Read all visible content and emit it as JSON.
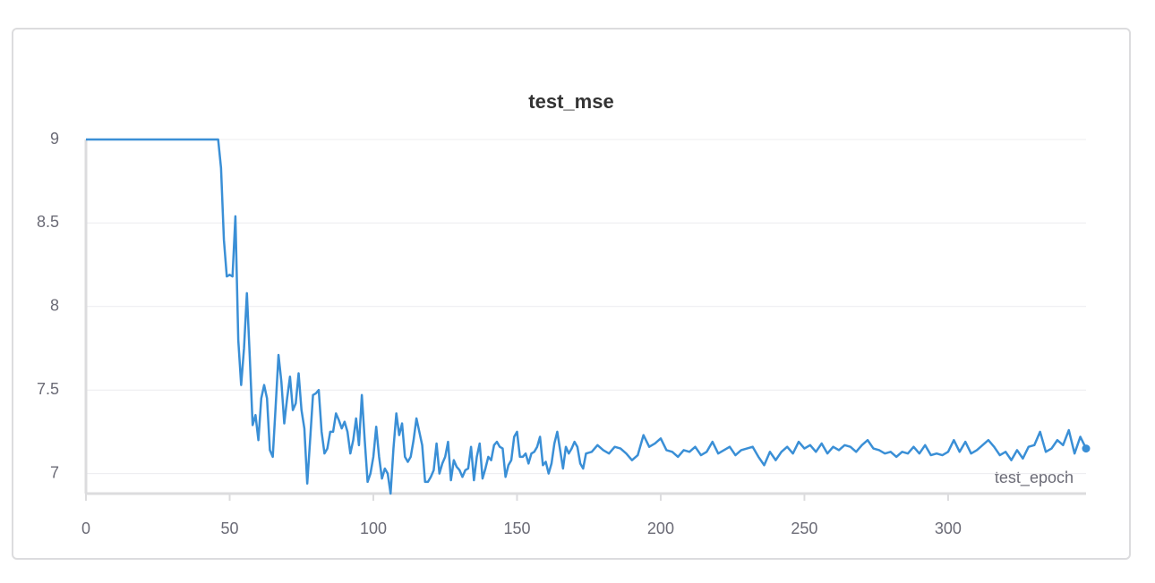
{
  "chart_data": {
    "type": "line",
    "title": "test_mse",
    "x_label": "test_epoch",
    "xlim": [
      0,
      348
    ],
    "ylim": [
      6.88,
      9
    ],
    "xticks": [
      0,
      50,
      100,
      150,
      200,
      250,
      300
    ],
    "yticks": [
      7,
      7.5,
      8,
      8.5,
      9
    ],
    "grid": true,
    "series": [
      {
        "name": "test_mse",
        "color": "#3a8fd6",
        "x": [
          0,
          46,
          47,
          48,
          49,
          50,
          51,
          52,
          53,
          54,
          55,
          56,
          57,
          58,
          59,
          60,
          61,
          62,
          63,
          64,
          65,
          66,
          67,
          68,
          69,
          70,
          71,
          72,
          73,
          74,
          75,
          76,
          77,
          78,
          79,
          80,
          81,
          82,
          83,
          84,
          85,
          86,
          87,
          88,
          89,
          90,
          91,
          92,
          93,
          94,
          95,
          96,
          97,
          98,
          99,
          100,
          101,
          102,
          103,
          104,
          105,
          106,
          107,
          108,
          109,
          110,
          111,
          112,
          113,
          114,
          115,
          116,
          117,
          118,
          119,
          120,
          121,
          122,
          123,
          124,
          125,
          126,
          127,
          128,
          129,
          130,
          131,
          132,
          133,
          134,
          135,
          136,
          137,
          138,
          139,
          140,
          141,
          142,
          143,
          144,
          145,
          146,
          147,
          148,
          149,
          150,
          151,
          152,
          153,
          154,
          155,
          156,
          157,
          158,
          159,
          160,
          161,
          162,
          163,
          164,
          165,
          166,
          167,
          168,
          169,
          170,
          171,
          172,
          173,
          174,
          176,
          178,
          180,
          182,
          184,
          186,
          188,
          190,
          192,
          194,
          196,
          198,
          200,
          202,
          204,
          206,
          208,
          210,
          212,
          214,
          216,
          218,
          220,
          222,
          224,
          226,
          228,
          230,
          232,
          234,
          236,
          238,
          240,
          242,
          244,
          246,
          248,
          250,
          252,
          254,
          256,
          258,
          260,
          262,
          264,
          266,
          268,
          270,
          272,
          274,
          276,
          278,
          280,
          282,
          284,
          286,
          288,
          290,
          292,
          294,
          296,
          298,
          300,
          302,
          304,
          306,
          308,
          310,
          312,
          314,
          316,
          318,
          320,
          322,
          324,
          326,
          328,
          330,
          332,
          334,
          336,
          338,
          340,
          342,
          344,
          346,
          348
        ],
        "values": [
          9,
          9,
          8.83,
          8.4,
          8.18,
          8.19,
          8.18,
          8.54,
          7.8,
          7.53,
          7.75,
          8.08,
          7.7,
          7.29,
          7.35,
          7.2,
          7.45,
          7.53,
          7.45,
          7.14,
          7.1,
          7.4,
          7.71,
          7.55,
          7.3,
          7.45,
          7.58,
          7.38,
          7.42,
          7.6,
          7.38,
          7.27,
          6.94,
          7.2,
          7.47,
          7.48,
          7.5,
          7.25,
          7.12,
          7.15,
          7.25,
          7.25,
          7.36,
          7.32,
          7.27,
          7.31,
          7.25,
          7.12,
          7.2,
          7.33,
          7.17,
          7.47,
          7.2,
          6.95,
          7.0,
          7.1,
          7.28,
          7.1,
          6.97,
          7.03,
          7.0,
          6.88,
          7.15,
          7.36,
          7.23,
          7.3,
          7.1,
          7.07,
          7.1,
          7.2,
          7.33,
          7.25,
          7.17,
          6.95,
          6.95,
          6.98,
          7.02,
          7.18,
          7.0,
          7.06,
          7.1,
          7.19,
          6.96,
          7.08,
          7.04,
          7.02,
          6.98,
          7.02,
          7.03,
          7.16,
          6.96,
          7.1,
          7.18,
          6.97,
          7.03,
          7.1,
          7.08,
          7.17,
          7.19,
          7.16,
          7.15,
          6.98,
          7.05,
          7.08,
          7.22,
          7.25,
          7.1,
          7.1,
          7.12,
          7.06,
          7.12,
          7.13,
          7.16,
          7.22,
          7.05,
          7.07,
          7.0,
          7.06,
          7.18,
          7.25,
          7.14,
          7.03,
          7.16,
          7.12,
          7.15,
          7.19,
          7.16,
          7.06,
          7.03,
          7.12,
          7.13,
          7.17,
          7.14,
          7.12,
          7.16,
          7.15,
          7.12,
          7.08,
          7.11,
          7.23,
          7.16,
          7.18,
          7.21,
          7.14,
          7.13,
          7.1,
          7.14,
          7.13,
          7.16,
          7.11,
          7.13,
          7.19,
          7.12,
          7.14,
          7.16,
          7.11,
          7.14,
          7.15,
          7.16,
          7.1,
          7.05,
          7.13,
          7.08,
          7.13,
          7.16,
          7.12,
          7.19,
          7.15,
          7.17,
          7.13,
          7.18,
          7.12,
          7.16,
          7.14,
          7.17,
          7.16,
          7.13,
          7.17,
          7.2,
          7.15,
          7.14,
          7.12,
          7.13,
          7.1,
          7.13,
          7.12,
          7.16,
          7.12,
          7.17,
          7.11,
          7.12,
          7.11,
          7.13,
          7.2,
          7.13,
          7.19,
          7.12,
          7.14,
          7.17,
          7.2,
          7.16,
          7.11,
          7.13,
          7.08,
          7.14,
          7.09,
          7.16,
          7.17,
          7.25,
          7.13,
          7.15,
          7.2,
          7.17,
          7.26,
          7.12,
          7.22,
          7.15
        ]
      }
    ]
  }
}
